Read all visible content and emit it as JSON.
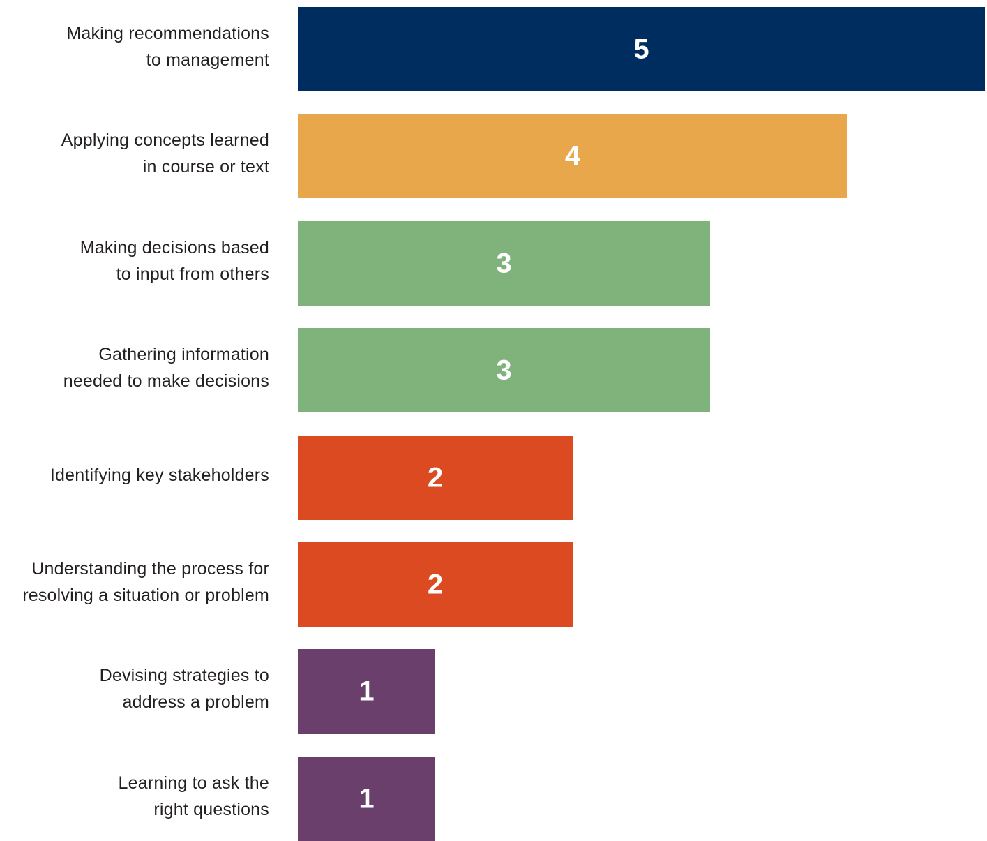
{
  "chart_data": {
    "type": "bar",
    "orientation": "horizontal",
    "title": "",
    "xlabel": "",
    "ylabel": "",
    "xlim": [
      0,
      5
    ],
    "grid": false,
    "legend": "none",
    "categories": [
      [
        "Making recommendations",
        "to management"
      ],
      [
        "Applying concepts learned",
        "in course or text"
      ],
      [
        "Making decisions based",
        "to input from others"
      ],
      [
        "Gathering information",
        "needed to make decisions"
      ],
      [
        "Identifying key stakeholders"
      ],
      [
        "Understanding the process for",
        "resolving a situation or problem"
      ],
      [
        "Devising strategies to",
        "address a problem"
      ],
      [
        "Learning to ask the",
        "right questions"
      ]
    ],
    "values": [
      5,
      4,
      3,
      3,
      2,
      2,
      1,
      1
    ],
    "colors": [
      "#002d5f",
      "#e8a74b",
      "#80b37c",
      "#80b37c",
      "#db4a21",
      "#db4a21",
      "#6b3f6b",
      "#6b3f6b"
    ],
    "value_label_color": "#ffffff"
  }
}
